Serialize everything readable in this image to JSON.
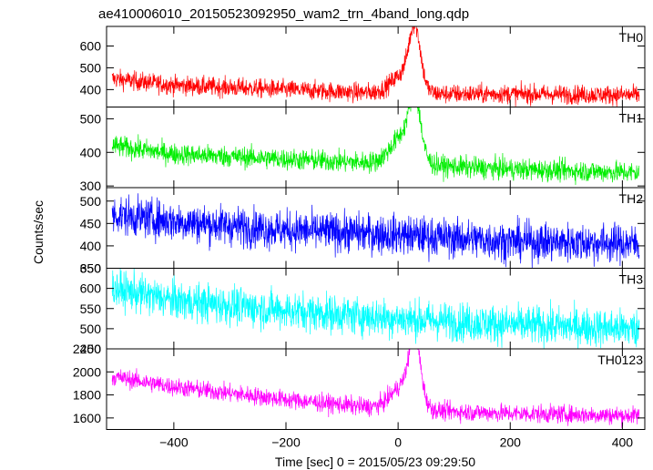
{
  "chart_data": {
    "type": "line",
    "title": "ae410006010_20150523092950_wam2_trn_4band_long.qdp",
    "xlabel": "Time [sec] 0 = 2015/05/23 09:29:50",
    "ylabel": "Counts/sec",
    "xlim": [
      -520,
      440
    ],
    "xticks": [
      -400,
      -200,
      0,
      200,
      400
    ],
    "panels": [
      {
        "name": "TH0",
        "color": "#ff0000",
        "ylim": [
          320,
          690
        ],
        "yticks": [
          400,
          500,
          600
        ],
        "trend": [
          [
            -510,
            450
          ],
          [
            -400,
            420
          ],
          [
            -200,
            400
          ],
          [
            0,
            380
          ],
          [
            200,
            380
          ],
          [
            420,
            375
          ]
        ],
        "noise": 22,
        "peaks": [
          [
            10,
            470,
            22
          ],
          [
            30,
            640,
            10
          ]
        ]
      },
      {
        "name": "TH1",
        "color": "#00ee00",
        "ylim": [
          295,
          535
        ],
        "yticks": [
          300,
          400,
          500
        ],
        "trend": [
          [
            -510,
            420
          ],
          [
            -400,
            395
          ],
          [
            -200,
            380
          ],
          [
            0,
            365
          ],
          [
            200,
            350
          ],
          [
            420,
            340
          ]
        ],
        "noise": 16,
        "peaks": [
          [
            10,
            450,
            22
          ],
          [
            30,
            520,
            10
          ]
        ]
      },
      {
        "name": "TH2",
        "color": "#0000ff",
        "ylim": [
          350,
          530
        ],
        "yticks": [
          350,
          400,
          450,
          500
        ],
        "trend": [
          [
            -510,
            470
          ],
          [
            -400,
            455
          ],
          [
            -200,
            435
          ],
          [
            0,
            425
          ],
          [
            200,
            410
          ],
          [
            420,
            405
          ]
        ],
        "noise": 22,
        "peaks": []
      },
      {
        "name": "TH3",
        "color": "#00ffff",
        "ylim": [
          450,
          650
        ],
        "yticks": [
          450,
          500,
          550,
          600,
          650
        ],
        "trend": [
          [
            -510,
            600
          ],
          [
            -400,
            570
          ],
          [
            -200,
            545
          ],
          [
            0,
            525
          ],
          [
            200,
            510
          ],
          [
            420,
            500
          ]
        ],
        "noise": 24,
        "peaks": []
      },
      {
        "name": "TH0123",
        "color": "#ff00ff",
        "ylim": [
          1500,
          2200
        ],
        "yticks": [
          1600,
          1800,
          2000,
          2200
        ],
        "trend": [
          [
            -510,
            1960
          ],
          [
            -400,
            1870
          ],
          [
            -200,
            1760
          ],
          [
            0,
            1670
          ],
          [
            200,
            1640
          ],
          [
            420,
            1620
          ]
        ],
        "noise": 40,
        "peaks": [
          [
            10,
            1880,
            22
          ],
          [
            30,
            2180,
            10
          ]
        ]
      }
    ]
  }
}
